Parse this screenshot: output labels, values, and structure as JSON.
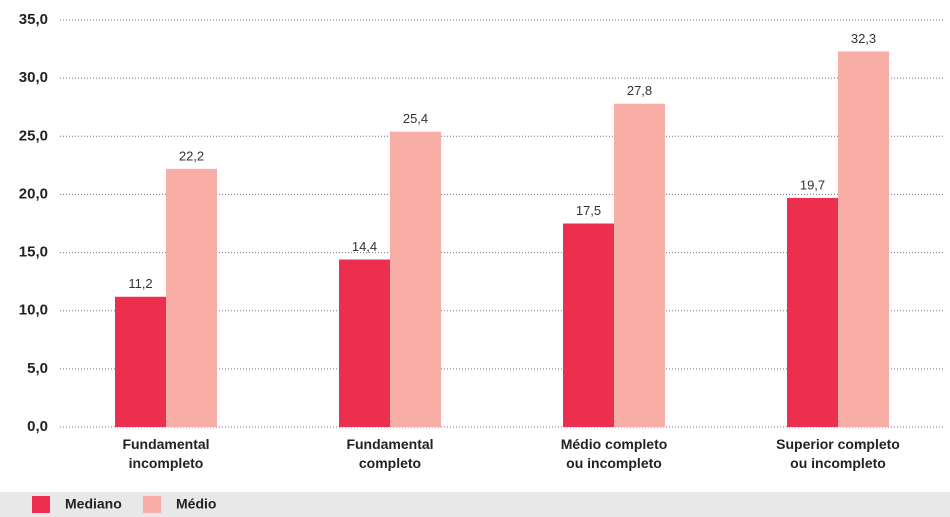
{
  "chart_data": {
    "type": "bar",
    "categories": [
      "Fundamental\nincompleto",
      "Fundamental\ncompleto",
      "Médio completo\nou incompleto",
      "Superior completo\nou incompleto"
    ],
    "series": [
      {
        "name": "Mediano",
        "color": "#ec2f4e",
        "values": [
          11.2,
          14.4,
          17.5,
          19.7
        ],
        "value_labels": [
          "11,2",
          "14,4",
          "17,5",
          "19,7"
        ]
      },
      {
        "name": "Médio",
        "color": "#f8aea7",
        "values": [
          22.2,
          25.4,
          27.8,
          32.3
        ],
        "value_labels": [
          "22,2",
          "25,4",
          "27,8",
          "32,3"
        ]
      }
    ],
    "ylim": [
      0,
      35
    ],
    "yticks": [
      {
        "value": 0,
        "label": "0,0"
      },
      {
        "value": 5,
        "label": "5,0"
      },
      {
        "value": 10,
        "label": "10,0"
      },
      {
        "value": 15,
        "label": "15,0"
      },
      {
        "value": 20,
        "label": "20,0"
      },
      {
        "value": 25,
        "label": "25,0"
      },
      {
        "value": 30,
        "label": "30,0"
      },
      {
        "value": 35,
        "label": "35,0"
      }
    ],
    "grid": true
  }
}
